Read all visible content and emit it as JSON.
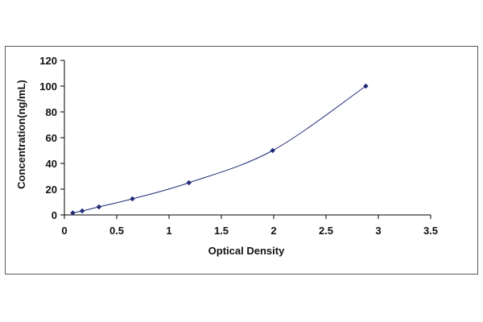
{
  "chart_data": {
    "type": "scatter",
    "title": "",
    "xlabel": "Optical Density",
    "ylabel": "Concentration(ng/mL)",
    "xlim": [
      0,
      3.5
    ],
    "ylim": [
      0,
      120
    ],
    "xticks": [
      "0",
      "0.5",
      "1",
      "1.5",
      "2",
      "2.5",
      "3",
      "3.5"
    ],
    "xtick_values": [
      0,
      0.5,
      1,
      1.5,
      2,
      2.5,
      3,
      3.5
    ],
    "yticks": [
      "0",
      "20",
      "40",
      "60",
      "80",
      "100",
      "120"
    ],
    "ytick_values": [
      0,
      20,
      40,
      60,
      80,
      100,
      120
    ],
    "grid": false,
    "legend": "none",
    "series": [
      {
        "marker_color": "#1f2a78",
        "line_color": "#1f2a78",
        "x": [
          0.08,
          0.17,
          0.33,
          0.65,
          1.19,
          1.99,
          2.88
        ],
        "y": [
          1.56,
          3.12,
          6.25,
          12.5,
          25,
          50,
          100
        ]
      }
    ]
  }
}
